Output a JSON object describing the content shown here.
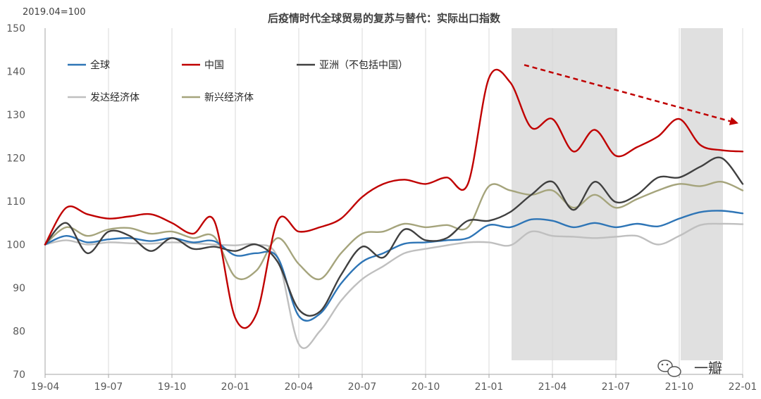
{
  "header": {
    "base_note": "2019.04=100",
    "watermark": "一瓣"
  },
  "chart_data": {
    "type": "line",
    "title": "后疫情时代全球贸易的复苏与替代：实际出口指数",
    "xlabel": "",
    "ylabel": "",
    "ylim": [
      70,
      150
    ],
    "yticks": [
      70,
      80,
      90,
      100,
      110,
      120,
      130,
      140,
      150
    ],
    "x_tick_labels": [
      "19-04",
      "19-07",
      "19-10",
      "20-01",
      "20-04",
      "20-07",
      "20-10",
      "21-01",
      "21-04",
      "21-07",
      "21-10",
      "22-01"
    ],
    "x": [
      "19-04",
      "19-05",
      "19-06",
      "19-07",
      "19-08",
      "19-09",
      "19-10",
      "19-11",
      "19-12",
      "20-01",
      "20-02",
      "20-03",
      "20-04",
      "20-05",
      "20-06",
      "20-07",
      "20-08",
      "20-09",
      "20-10",
      "20-11",
      "20-12",
      "21-01",
      "21-02",
      "21-03",
      "21-04",
      "21-05",
      "21-06",
      "21-07",
      "21-08",
      "21-09",
      "21-10",
      "21-11",
      "21-12",
      "22-01"
    ],
    "grid": "vertical",
    "legend_position": "top-left",
    "shaded_periods": [
      {
        "start": "21-02",
        "end": "21-07"
      },
      {
        "start": "21-10",
        "end": "21-12"
      }
    ],
    "trend_arrow": {
      "from": [
        "21-02",
        141.5
      ],
      "to": [
        "22-01",
        128.0
      ],
      "color": "#C00000"
    },
    "series": [
      {
        "name": "全球",
        "color": "#2E75B6",
        "values": [
          100,
          102.0,
          100.5,
          101.2,
          101.5,
          100.8,
          101.5,
          100.5,
          100.8,
          97.5,
          98.0,
          97.0,
          83.5,
          84.0,
          91.0,
          96.0,
          98.0,
          100.2,
          100.5,
          101.0,
          101.5,
          104.5,
          104.0,
          105.8,
          105.5,
          104.0,
          105.0,
          104.0,
          104.8,
          104.2,
          106.0,
          107.5,
          107.8,
          107.2
        ]
      },
      {
        "name": "中国",
        "color": "#C00000",
        "values": [
          100,
          108.5,
          107.0,
          106.0,
          106.5,
          107.0,
          105.0,
          102.5,
          105.5,
          83.0,
          84.0,
          105.5,
          103.0,
          104.0,
          106.0,
          111.0,
          114.0,
          115.0,
          114.0,
          115.5,
          114.0,
          138.5,
          137.5,
          127.0,
          129.0,
          121.5,
          126.5,
          120.5,
          122.5,
          125.0,
          129.0,
          123.0,
          121.8,
          121.5
        ]
      },
      {
        "name": "亚洲（不包括中国）",
        "color": "#404040",
        "values": [
          100,
          105.0,
          98.0,
          103.0,
          102.0,
          98.5,
          101.5,
          99.0,
          99.5,
          98.5,
          100.0,
          96.0,
          85.0,
          84.5,
          93.0,
          99.5,
          97.0,
          103.5,
          101.0,
          101.5,
          105.5,
          105.5,
          107.5,
          111.5,
          114.5,
          108.0,
          114.5,
          109.8,
          111.5,
          115.5,
          115.5,
          118.0,
          120.0,
          114.0
        ]
      },
      {
        "name": "发达经济体",
        "color": "#BFBFBF",
        "values": [
          100,
          101.0,
          100.0,
          100.5,
          100.3,
          100.2,
          100.5,
          100.3,
          100.0,
          99.8,
          100.0,
          97.0,
          77.0,
          80.0,
          87.0,
          92.0,
          95.0,
          98.0,
          99.0,
          99.8,
          100.5,
          100.5,
          99.8,
          103.0,
          102.0,
          101.8,
          101.5,
          101.8,
          102.0,
          100.0,
          102.0,
          104.5,
          104.8,
          104.7
        ]
      },
      {
        "name": "新兴经济体",
        "color": "#A5A47C",
        "values": [
          100,
          104.0,
          102.0,
          103.5,
          103.8,
          102.5,
          103.0,
          101.5,
          101.8,
          92.5,
          94.0,
          101.5,
          95.5,
          92.0,
          98.0,
          102.5,
          103.0,
          104.8,
          104.0,
          104.5,
          104.0,
          113.5,
          112.5,
          111.5,
          112.5,
          108.5,
          111.5,
          108.5,
          110.5,
          112.5,
          114.0,
          113.5,
          114.5,
          112.5
        ]
      }
    ]
  }
}
